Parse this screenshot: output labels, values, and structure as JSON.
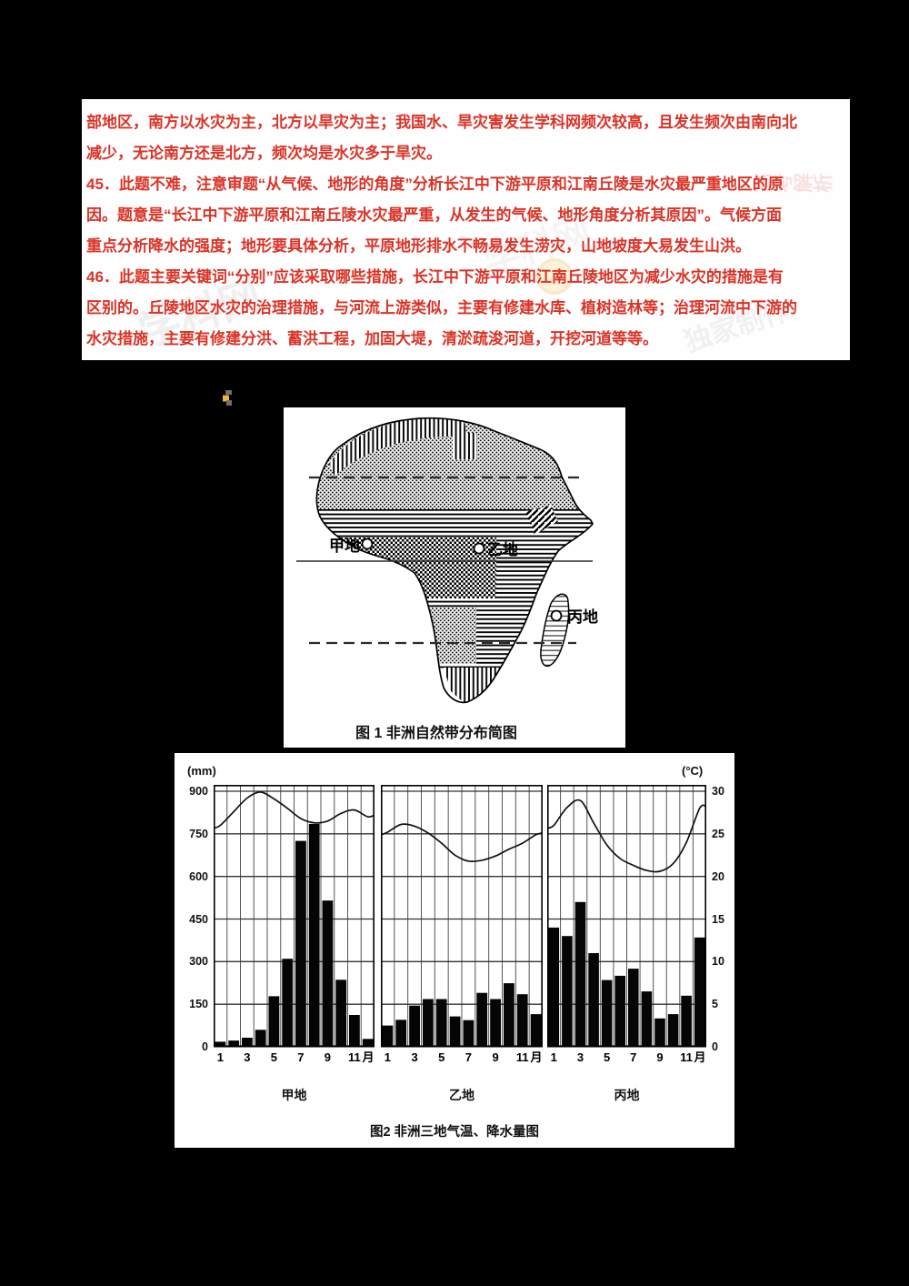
{
  "page": {
    "background": "#000000",
    "paper": "#ffffff",
    "answer_text_color": "#da3327"
  },
  "answer_panel": {
    "lines": [
      "部地区，南方以水灾为主，北方以旱灾为主；我国水、旱灾害发生学科网频次较高，且发生频次由南向北",
      "减少，无论南方还是北方，频次均是水灾多于旱灾。",
      "45．此题不难，注意审题“从气候、地形的角度”分析长江中下游平原和江南丘陵是水灾最严重地区的原",
      "因。题意是“长江中下游平原和江南丘陵水灾最严重，从发生的气候、地形角度分析其原因”。气候方面",
      "重点分析降水的强度；地形要具体分析，平原地形排水不畅易发生涝灾，山地坡度大易发生山洪。",
      "46．此题主要关键词“分别”应该采取哪些措施，长江中下游平原和江南丘陵地区为减少水灾的措施是有",
      "区别的。丘陵地区水灾的治理措施，与河流上游类似，主要有修建水库、植树造林等；治理河流中下游的",
      "水灾措施，主要有修建分洪、蓄洪工程，加固大堤，清淤疏浚河道，开挖河道等等。"
    ]
  },
  "watermarks": {
    "wm1": "学科网",
    "wm2": "学科网",
    "wm3": "高考解析",
    "wm4": "独家制作"
  },
  "figure1": {
    "caption": "图 1  非洲自然带分布简图",
    "label_jia": "甲地",
    "label_yi": "乙地",
    "label_bing": "丙地"
  },
  "figure2": {
    "caption": "图2   非洲三地气温、降水量图",
    "left_axis_unit": "(mm)",
    "right_axis_unit": "(°C)",
    "panel_labels": [
      "甲地",
      "乙地",
      "丙地"
    ]
  },
  "chart_data": {
    "type": "bar",
    "subtype": "climate chart: precipitation bars + temperature line, 3 panels",
    "title": "图2 非洲三地气温、降水量图",
    "x": [
      1,
      2,
      3,
      4,
      5,
      6,
      7,
      8,
      9,
      10,
      11,
      12
    ],
    "x_tick_labels": [
      "1",
      "3",
      "5",
      "7",
      "9",
      "11",
      "月"
    ],
    "precip_axis": {
      "unit": "mm",
      "ticks": [
        900,
        750,
        600,
        450,
        300,
        150,
        0
      ],
      "lim": [
        0,
        900
      ]
    },
    "temp_axis": {
      "unit": "°C",
      "ticks": [
        30,
        25,
        20,
        15,
        10,
        5,
        0
      ],
      "lim": [
        0,
        30
      ]
    },
    "grid": "on",
    "panels": [
      {
        "name": "甲地",
        "precipitation_mm": [
          18,
          22,
          32,
          60,
          178,
          310,
          725,
          785,
          515,
          236,
          112,
          28
        ],
        "temperature_c": [
          26.0,
          27.6,
          29.2,
          29.9,
          29.1,
          28.0,
          26.8,
          26.3,
          26.5,
          27.4,
          27.8,
          27.0
        ]
      },
      {
        "name": "乙地",
        "precipitation_mm": [
          75,
          95,
          145,
          168,
          168,
          107,
          94,
          190,
          168,
          224,
          185,
          115
        ],
        "temperature_c": [
          25.2,
          26.1,
          25.9,
          25.1,
          23.9,
          22.5,
          21.8,
          21.9,
          22.4,
          23.2,
          23.9,
          24.9
        ]
      },
      {
        "name": "丙地",
        "precipitation_mm": [
          420,
          390,
          510,
          330,
          235,
          250,
          275,
          195,
          100,
          115,
          180,
          385
        ],
        "temperature_c": [
          26.0,
          28.1,
          28.9,
          26.3,
          23.7,
          22.1,
          21.3,
          20.7,
          20.6,
          21.5,
          24.0,
          28.0
        ]
      }
    ]
  }
}
